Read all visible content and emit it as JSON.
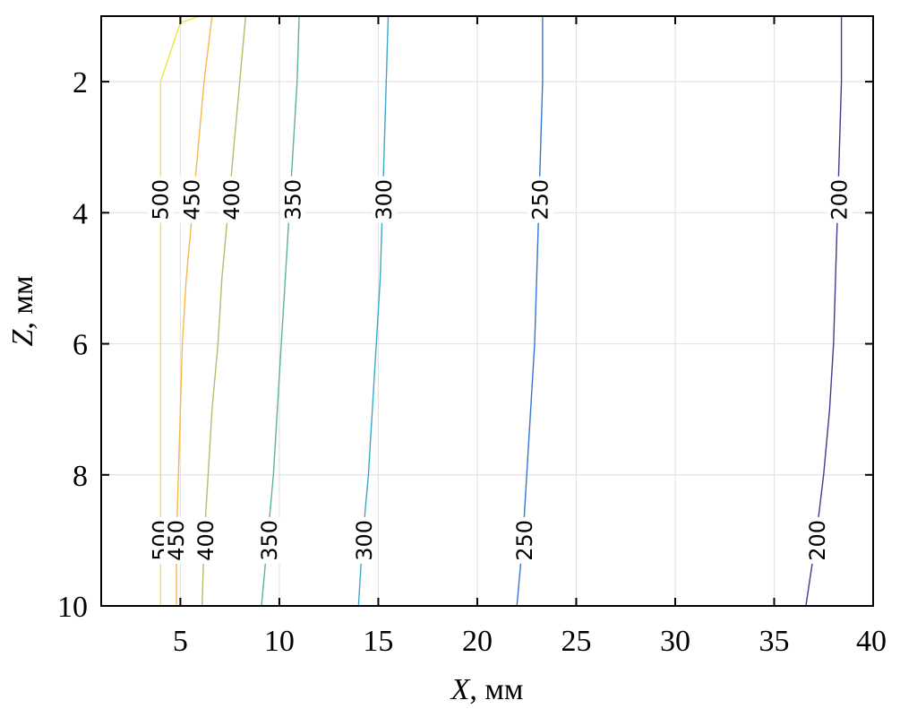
{
  "chart_data": {
    "type": "contour",
    "xlabel": {
      "var": "X",
      "unit": ", мм"
    },
    "ylabel": {
      "var": "Z",
      "unit": ", мм"
    },
    "xlim": [
      1,
      40
    ],
    "ylim": [
      1,
      10
    ],
    "y_reversed": true,
    "grid": true,
    "x_ticks": [
      5,
      10,
      15,
      20,
      25,
      30,
      35,
      40
    ],
    "y_ticks": [
      2,
      4,
      6,
      8,
      10
    ],
    "contours": [
      {
        "level": "500",
        "color": "#f0e442",
        "points": [
          [
            6.0,
            1.0
          ],
          [
            5.0,
            1.1
          ],
          [
            4.0,
            2.0
          ],
          [
            4.0,
            4.0
          ],
          [
            4.0,
            6.0
          ],
          [
            4.0,
            8.0
          ],
          [
            4.0,
            10.0
          ]
        ],
        "labels": [
          [
            4.0,
            3.8
          ],
          [
            4.0,
            9.0
          ]
        ]
      },
      {
        "level": "450",
        "color": "#f7b84b",
        "points": [
          [
            6.6,
            1.0
          ],
          [
            6.2,
            2.0
          ],
          [
            5.9,
            3.0
          ],
          [
            5.6,
            4.0
          ],
          [
            5.3,
            5.0
          ],
          [
            5.1,
            6.0
          ],
          [
            5.0,
            7.0
          ],
          [
            4.9,
            8.0
          ],
          [
            4.8,
            9.0
          ],
          [
            4.8,
            10.0
          ]
        ],
        "labels": [
          [
            5.6,
            3.8
          ],
          [
            4.8,
            9.0
          ]
        ]
      },
      {
        "level": "400",
        "color": "#b5bb6a",
        "points": [
          [
            8.3,
            1.0
          ],
          [
            8.0,
            2.0
          ],
          [
            7.7,
            3.0
          ],
          [
            7.4,
            4.0
          ],
          [
            7.1,
            5.0
          ],
          [
            6.9,
            6.0
          ],
          [
            6.6,
            7.0
          ],
          [
            6.4,
            8.0
          ],
          [
            6.2,
            9.0
          ],
          [
            6.1,
            10.0
          ]
        ],
        "labels": [
          [
            7.6,
            3.8
          ],
          [
            6.3,
            9.0
          ]
        ]
      },
      {
        "level": "350",
        "color": "#5fb39a",
        "points": [
          [
            11.0,
            1.0
          ],
          [
            10.9,
            2.0
          ],
          [
            10.7,
            3.0
          ],
          [
            10.5,
            4.0
          ],
          [
            10.3,
            5.0
          ],
          [
            10.1,
            6.0
          ],
          [
            9.9,
            7.0
          ],
          [
            9.7,
            8.0
          ],
          [
            9.4,
            9.0
          ],
          [
            9.1,
            10.0
          ]
        ],
        "labels": [
          [
            10.7,
            3.8
          ],
          [
            9.5,
            9.0
          ]
        ]
      },
      {
        "level": "300",
        "color": "#3aa9c9",
        "points": [
          [
            15.5,
            1.0
          ],
          [
            15.4,
            2.0
          ],
          [
            15.3,
            3.0
          ],
          [
            15.2,
            4.0
          ],
          [
            15.1,
            5.0
          ],
          [
            14.9,
            6.0
          ],
          [
            14.7,
            7.0
          ],
          [
            14.5,
            8.0
          ],
          [
            14.2,
            9.0
          ],
          [
            14.0,
            10.0
          ]
        ],
        "labels": [
          [
            15.3,
            3.8
          ],
          [
            14.3,
            9.0
          ]
        ]
      },
      {
        "level": "250",
        "color": "#3575cf",
        "points": [
          [
            23.3,
            1.0
          ],
          [
            23.3,
            2.0
          ],
          [
            23.2,
            3.0
          ],
          [
            23.1,
            4.0
          ],
          [
            23.0,
            5.0
          ],
          [
            22.9,
            6.0
          ],
          [
            22.7,
            7.0
          ],
          [
            22.5,
            8.0
          ],
          [
            22.3,
            9.0
          ],
          [
            22.0,
            10.0
          ]
        ],
        "labels": [
          [
            23.2,
            3.8
          ],
          [
            22.4,
            9.0
          ]
        ]
      },
      {
        "level": "200",
        "color": "#433b8c",
        "points": [
          [
            38.4,
            1.0
          ],
          [
            38.4,
            2.0
          ],
          [
            38.3,
            3.0
          ],
          [
            38.2,
            4.0
          ],
          [
            38.1,
            5.0
          ],
          [
            38.0,
            6.0
          ],
          [
            37.8,
            7.0
          ],
          [
            37.5,
            8.0
          ],
          [
            37.1,
            9.0
          ],
          [
            36.6,
            10.0
          ]
        ],
        "labels": [
          [
            38.3,
            3.8
          ],
          [
            37.2,
            9.0
          ]
        ]
      }
    ]
  }
}
